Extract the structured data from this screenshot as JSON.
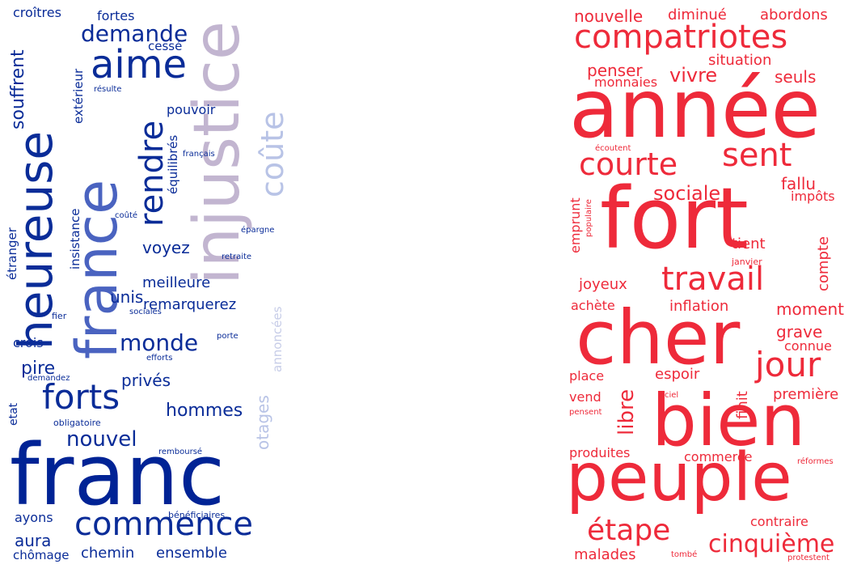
{
  "clouds": [
    {
      "id": "left",
      "colors": [
        "#002395",
        "#4a5fb5",
        "#bfb0cf",
        "#c7cde8"
      ],
      "words": [
        {
          "text": "franc",
          "color": "#002395"
        },
        {
          "text": "injustice",
          "color": "#c2b5d0"
        },
        {
          "text": "france",
          "color": "#4a63c0"
        },
        {
          "text": "heureuse",
          "color": "#0a2c98"
        },
        {
          "text": "aime",
          "color": "#0a2c98"
        },
        {
          "text": "commence",
          "color": "#0a2c98"
        },
        {
          "text": "forts",
          "color": "#0a2c98"
        },
        {
          "text": "rendre",
          "color": "#0a2c98"
        },
        {
          "text": "coûte",
          "color": "#b8c3e6"
        },
        {
          "text": "demande",
          "color": "#0a2c98"
        },
        {
          "text": "nouvel",
          "color": "#0a2c98"
        },
        {
          "text": "monde",
          "color": "#0a2c98"
        },
        {
          "text": "souffrent",
          "color": "#0a2c98"
        },
        {
          "text": "hommes",
          "color": "#0a2c98"
        },
        {
          "text": "aura",
          "color": "#0a2c98"
        },
        {
          "text": "chemin",
          "color": "#0a2c98"
        },
        {
          "text": "ensemble",
          "color": "#0a2c98"
        },
        {
          "text": "otages",
          "color": "#b8c3e6"
        },
        {
          "text": "pire",
          "color": "#0a2c98"
        },
        {
          "text": "voyez",
          "color": "#0a2c98"
        },
        {
          "text": "meilleure",
          "color": "#0a2c98"
        },
        {
          "text": "unis",
          "color": "#0a2c98"
        },
        {
          "text": "remarquerez",
          "color": "#0a2c98"
        },
        {
          "text": "privés",
          "color": "#0a2c98"
        },
        {
          "text": "croîtres",
          "color": "#0a2c98"
        },
        {
          "text": "fortes",
          "color": "#0a2c98"
        },
        {
          "text": "cessé",
          "color": "#0a2c98"
        },
        {
          "text": "pouvoir",
          "color": "#0a2c98"
        },
        {
          "text": "crois",
          "color": "#0a2c98"
        },
        {
          "text": "ayons",
          "color": "#0a2c98"
        },
        {
          "text": "chômage",
          "color": "#0a2c98"
        },
        {
          "text": "extérieur",
          "color": "#0a2c98"
        },
        {
          "text": "insistance",
          "color": "#0a2c98"
        },
        {
          "text": "étranger",
          "color": "#0a2c98"
        },
        {
          "text": "équilibrés",
          "color": "#0a2c98"
        },
        {
          "text": "annoncées",
          "color": "#c7cde8"
        },
        {
          "text": "etat",
          "color": "#0a2c98"
        },
        {
          "text": "résulte",
          "color": "#0a2c98"
        },
        {
          "text": "français",
          "color": "#0a2c98"
        },
        {
          "text": "coûté",
          "color": "#0a2c98"
        },
        {
          "text": "épargne",
          "color": "#0a2c98"
        },
        {
          "text": "retraite",
          "color": "#0a2c98"
        },
        {
          "text": "fier",
          "color": "#0a2c98"
        },
        {
          "text": "sociales",
          "color": "#0a2c98"
        },
        {
          "text": "porte",
          "color": "#0a2c98"
        },
        {
          "text": "efforts",
          "color": "#0a2c98"
        },
        {
          "text": "demandez",
          "color": "#0a2c98"
        },
        {
          "text": "obligatoire",
          "color": "#0a2c98"
        },
        {
          "text": "remboursé",
          "color": "#0a2c98"
        },
        {
          "text": "bénéficiaires",
          "color": "#0a2c98"
        }
      ]
    },
    {
      "id": "right",
      "colors": [
        "#ed2939"
      ],
      "words": [
        {
          "text": "année",
          "color": "#ee2a3a"
        },
        {
          "text": "fort",
          "color": "#ee2a3a"
        },
        {
          "text": "cher",
          "color": "#ee2a3a"
        },
        {
          "text": "bien",
          "color": "#ee2a3a"
        },
        {
          "text": "peuple",
          "color": "#ee2a3a"
        },
        {
          "text": "compatriotes",
          "color": "#ee2a3a"
        },
        {
          "text": "travail",
          "color": "#ee2a3a"
        },
        {
          "text": "courte",
          "color": "#ee2a3a"
        },
        {
          "text": "sent",
          "color": "#ee2a3a"
        },
        {
          "text": "jour",
          "color": "#ee2a3a"
        },
        {
          "text": "étape",
          "color": "#ee2a3a"
        },
        {
          "text": "cinquième",
          "color": "#ee2a3a"
        },
        {
          "text": "sociale",
          "color": "#ee2a3a"
        },
        {
          "text": "vivre",
          "color": "#ee2a3a"
        },
        {
          "text": "libre",
          "color": "#ee2a3a"
        },
        {
          "text": "nouvelle",
          "color": "#ee2a3a"
        },
        {
          "text": "diminué",
          "color": "#ee2a3a"
        },
        {
          "text": "abordons",
          "color": "#ee2a3a"
        },
        {
          "text": "situation",
          "color": "#ee2a3a"
        },
        {
          "text": "penser",
          "color": "#ee2a3a"
        },
        {
          "text": "monnaies",
          "color": "#ee2a3a"
        },
        {
          "text": "seuls",
          "color": "#ee2a3a"
        },
        {
          "text": "écoutent",
          "color": "#ee2a3a"
        },
        {
          "text": "fallu",
          "color": "#ee2a3a"
        },
        {
          "text": "impôts",
          "color": "#ee2a3a"
        },
        {
          "text": "emprunt",
          "color": "#ee2a3a"
        },
        {
          "text": "populaire",
          "color": "#ee2a3a"
        },
        {
          "text": "tient",
          "color": "#ee2a3a"
        },
        {
          "text": "janvier",
          "color": "#ee2a3a"
        },
        {
          "text": "compte",
          "color": "#ee2a3a"
        },
        {
          "text": "joyeux",
          "color": "#ee2a3a"
        },
        {
          "text": "achète",
          "color": "#ee2a3a"
        },
        {
          "text": "inflation",
          "color": "#ee2a3a"
        },
        {
          "text": "moment",
          "color": "#ee2a3a"
        },
        {
          "text": "grave",
          "color": "#ee2a3a"
        },
        {
          "text": "connue",
          "color": "#ee2a3a"
        },
        {
          "text": "place",
          "color": "#ee2a3a"
        },
        {
          "text": "espoir",
          "color": "#ee2a3a"
        },
        {
          "text": "vend",
          "color": "#ee2a3a"
        },
        {
          "text": "ciel",
          "color": "#ee2a3a"
        },
        {
          "text": "finit",
          "color": "#ee2a3a"
        },
        {
          "text": "première",
          "color": "#ee2a3a"
        },
        {
          "text": "pensent",
          "color": "#ee2a3a"
        },
        {
          "text": "produites",
          "color": "#ee2a3a"
        },
        {
          "text": "commerce",
          "color": "#ee2a3a"
        },
        {
          "text": "réformes",
          "color": "#ee2a3a"
        },
        {
          "text": "contraire",
          "color": "#ee2a3a"
        },
        {
          "text": "malades",
          "color": "#ee2a3a"
        },
        {
          "text": "tombé",
          "color": "#ee2a3a"
        },
        {
          "text": "protestent",
          "color": "#ee2a3a"
        }
      ]
    }
  ]
}
